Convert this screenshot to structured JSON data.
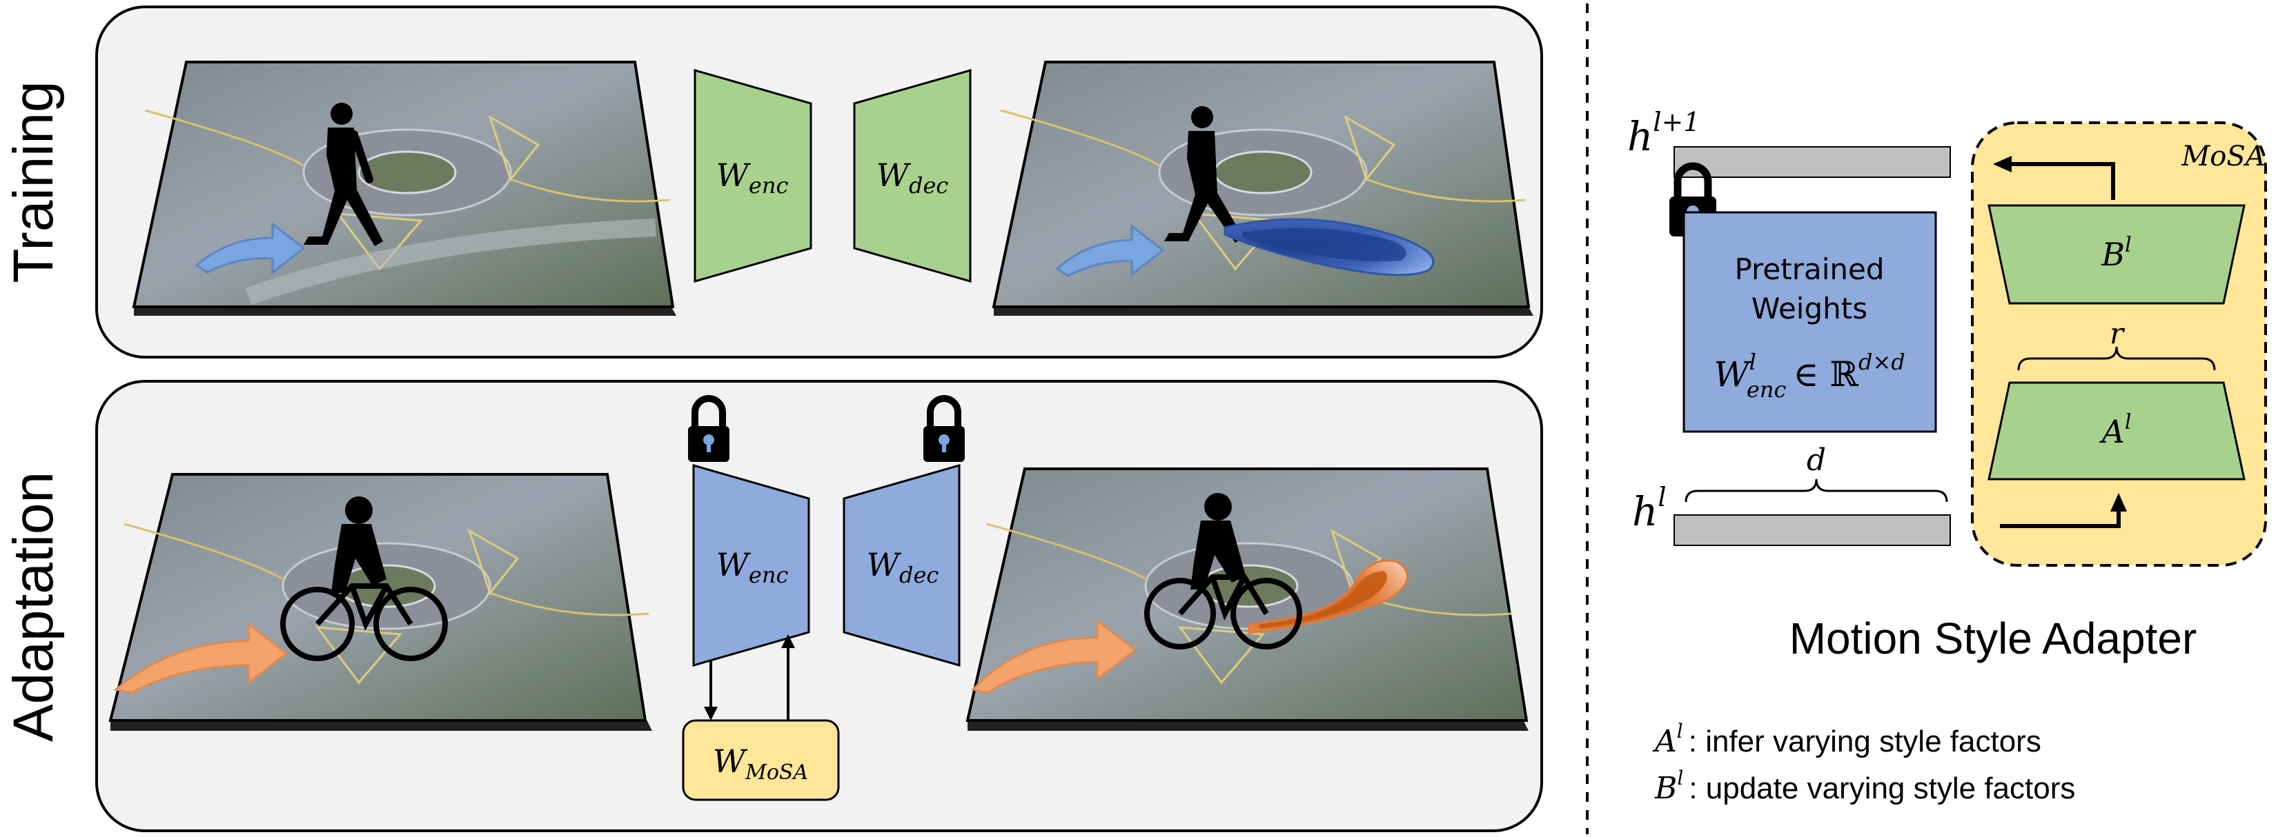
{
  "training": {
    "label": "Training",
    "enc": {
      "base": "W",
      "sub": "enc"
    },
    "dec": {
      "base": "W",
      "sub": "dec"
    }
  },
  "adaptation": {
    "label": "Adaptation",
    "enc": {
      "base": "W",
      "sub": "enc"
    },
    "dec": {
      "base": "W",
      "sub": "dec"
    },
    "mosa": {
      "base": "W",
      "sub": "MoSA"
    }
  },
  "adapter": {
    "h_top": {
      "base": "h",
      "sup": "l+1"
    },
    "h_bottom": {
      "base": "h",
      "sup": "l"
    },
    "pretrained_line1": "Pretrained",
    "pretrained_line2": "Weights",
    "w_enc": {
      "base": "W",
      "sup": "l",
      "sub": "enc"
    },
    "in_symbol": "∈",
    "space": {
      "base": "ℝ",
      "sup": "d×d"
    },
    "dim_d": "d",
    "dim_r": "r",
    "mosa_label": "MoSA",
    "b_label": {
      "base": "B",
      "sup": "l"
    },
    "a_label": {
      "base": "A",
      "sup": "l"
    },
    "title": "Motion Style Adapter"
  },
  "legend": [
    {
      "symbol": "A",
      "sup": "l",
      "text": ": infer varying style factors"
    },
    {
      "symbol": "B",
      "sup": "l",
      "text": ": update varying style factors"
    }
  ],
  "colors": {
    "green": "#a9d18e",
    "blue": "#8faadc",
    "yellow": "#ffe699",
    "panel": "#f2f2f2",
    "gray_bar": "#bfbfbf",
    "arrow_blue": "#6f9bd6",
    "arrow_orange": "#f4a26b",
    "trail_blue": "#2f54a6",
    "trail_orange": "#c55a11"
  }
}
